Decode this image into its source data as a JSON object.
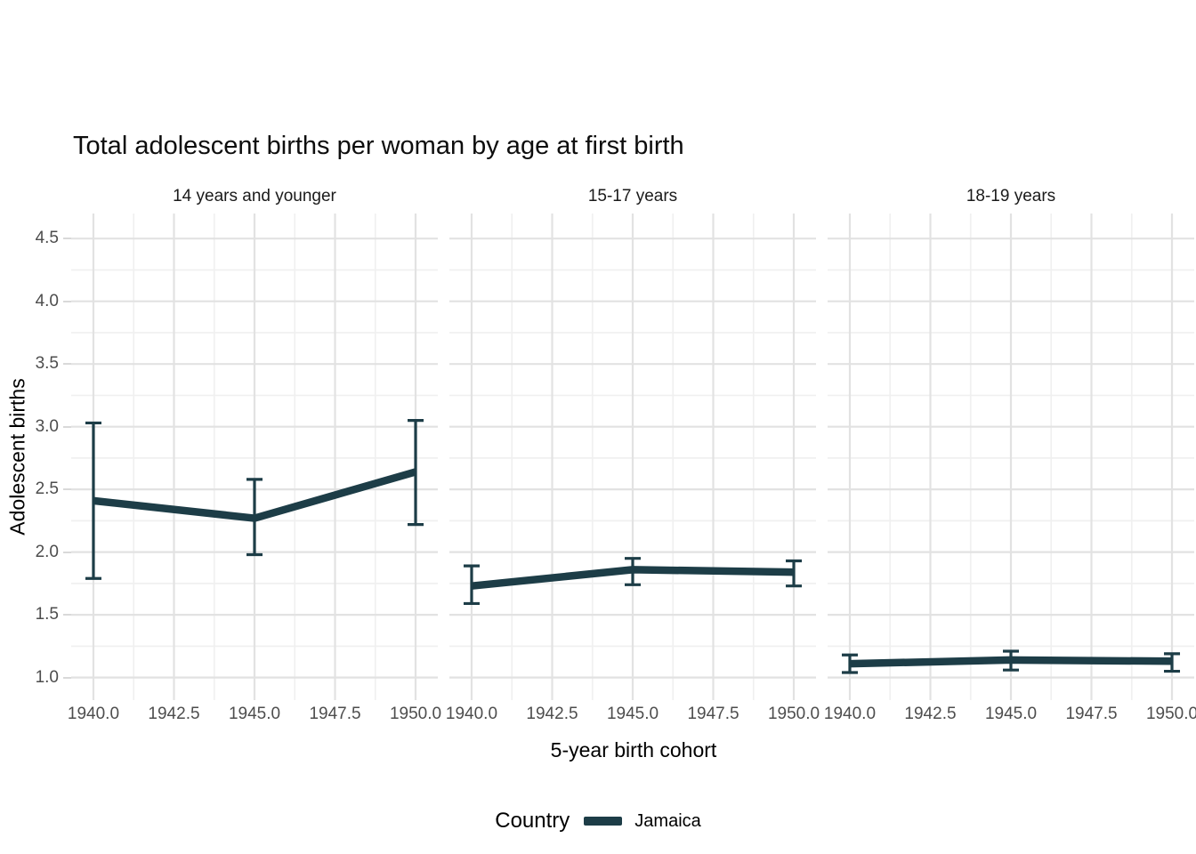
{
  "chart_data": {
    "type": "line",
    "title": "Total adolescent births per woman by age at first birth",
    "xlabel": "5-year birth cohort",
    "ylabel": "Adolescent births",
    "legend": {
      "title": "Country",
      "position": "bottom",
      "entries": [
        {
          "label": "Jamaica",
          "color": "#1d3d47"
        }
      ]
    },
    "grid": true,
    "x_ticks": [
      1940.0,
      1942.5,
      1945.0,
      1947.5,
      1950.0
    ],
    "x_tick_labels": [
      "1940.0",
      "1942.5",
      "1945.0",
      "1947.5",
      "1950.0"
    ],
    "x_minor_ticks": [
      1941.25,
      1943.75,
      1946.25,
      1948.75
    ],
    "y_ticks": [
      1.0,
      1.5,
      2.0,
      2.5,
      3.0,
      3.5,
      4.0,
      4.5
    ],
    "y_tick_labels": [
      "1.0",
      "1.5",
      "2.0",
      "2.5",
      "3.0",
      "3.5",
      "4.0",
      "4.5"
    ],
    "y_minor_ticks": [
      1.25,
      1.75,
      2.25,
      2.75,
      3.25,
      3.75,
      4.25
    ],
    "xlim": [
      1939.31,
      1950.69
    ],
    "ylim": [
      0.82,
      4.7
    ],
    "facets": [
      {
        "label": "14 years and younger",
        "series": [
          {
            "name": "Jamaica",
            "x": [
              1940,
              1945,
              1950
            ],
            "y": [
              2.41,
              2.27,
              2.64
            ],
            "ymin": [
              1.79,
              1.98,
              2.22
            ],
            "ymax": [
              3.03,
              2.58,
              3.05
            ]
          }
        ]
      },
      {
        "label": "15-17 years",
        "series": [
          {
            "name": "Jamaica",
            "x": [
              1940,
              1945,
              1950
            ],
            "y": [
              1.73,
              1.86,
              1.84
            ],
            "ymin": [
              1.59,
              1.74,
              1.73
            ],
            "ymax": [
              1.89,
              1.95,
              1.93
            ]
          }
        ]
      },
      {
        "label": "18-19 years",
        "series": [
          {
            "name": "Jamaica",
            "x": [
              1940,
              1945,
              1950
            ],
            "y": [
              1.11,
              1.14,
              1.13
            ],
            "ymin": [
              1.04,
              1.06,
              1.05
            ],
            "ymax": [
              1.18,
              1.21,
              1.19
            ]
          }
        ]
      }
    ],
    "colors": {
      "series": "#1d3d47",
      "grid_major": "#e2e2e2",
      "grid_minor": "#f0f0f0",
      "tick_label": "#4d4d4d",
      "text": "#000000"
    }
  }
}
